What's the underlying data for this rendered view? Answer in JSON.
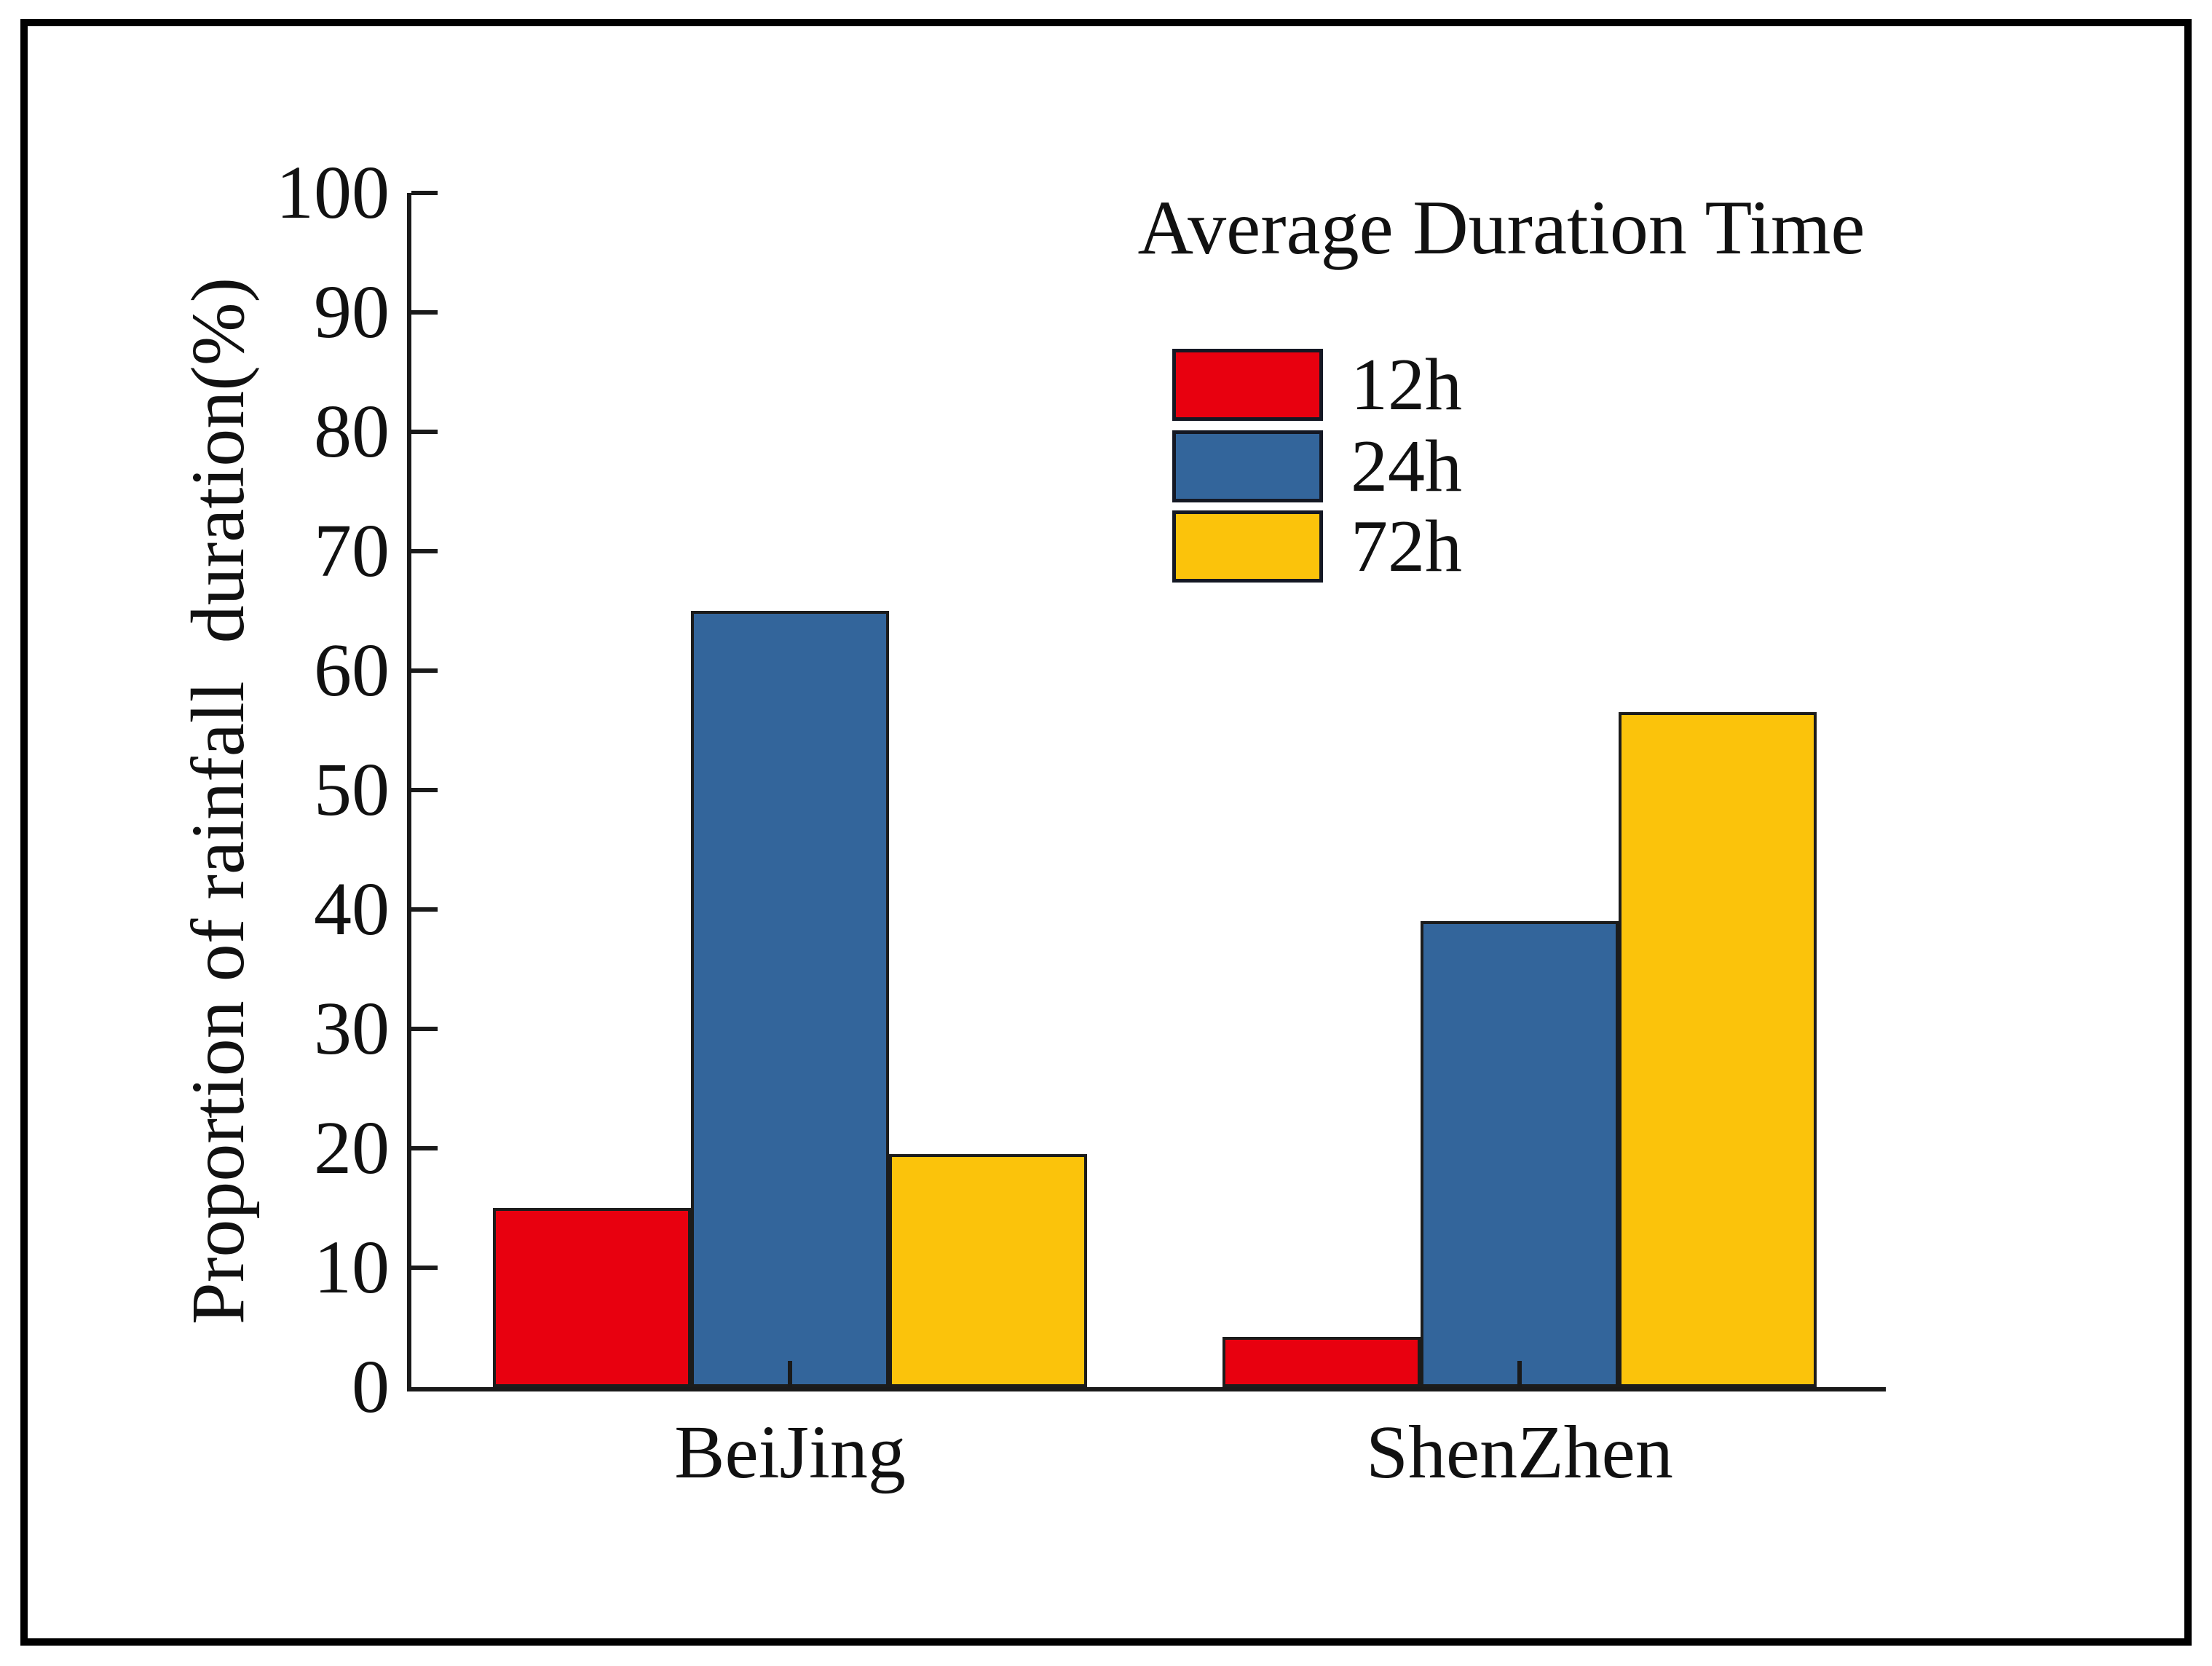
{
  "figure": {
    "background": "#ffffff",
    "border_color": "#000000"
  },
  "chart_data": {
    "type": "bar",
    "legend_title": "Average Duration Time",
    "categories": [
      "BeiJing",
      "ShenZhen"
    ],
    "series": [
      {
        "name": "12h",
        "color": "#e8000f",
        "values": [
          15,
          4.2
        ]
      },
      {
        "name": "24h",
        "color": "#33659b",
        "values": [
          65,
          39
        ]
      },
      {
        "name": "72h",
        "color": "#fbc30b",
        "values": [
          19.5,
          56.5
        ]
      }
    ],
    "ylabel": "Proportion of rainfall  duration(%)",
    "xlabel": "",
    "ylim": [
      0,
      100
    ],
    "ytick_step": 10,
    "ytick_labels": [
      "0",
      "10",
      "20",
      "30",
      "40",
      "50",
      "60",
      "70",
      "80",
      "90",
      "100"
    ],
    "grid": false,
    "legend_position": "upper-right-inside",
    "axis_color": "#1a1a1a",
    "bar_edge_color": "#1c1c1c"
  }
}
